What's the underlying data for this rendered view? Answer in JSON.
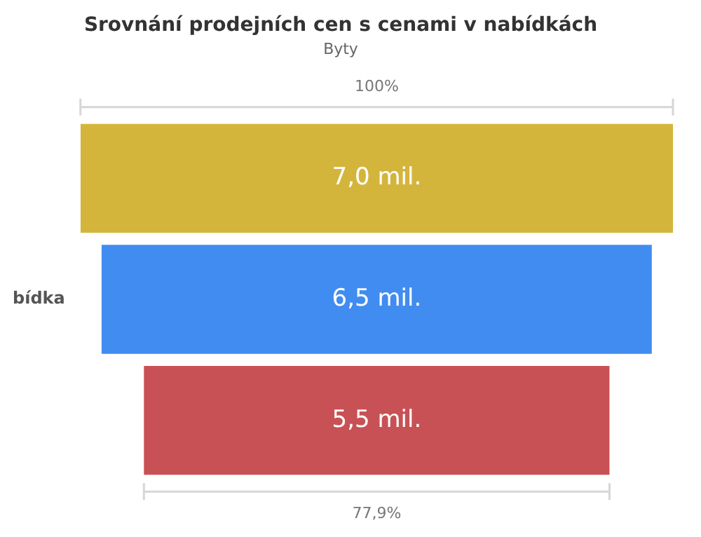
{
  "chart_data": {
    "type": "other",
    "title": "Srovnání prodejních cen s cenami v nabídkách",
    "subtitle": "Byty",
    "categories": [
      null,
      "bídka",
      null
    ],
    "values": [
      7.0,
      6.5,
      5.5
    ],
    "value_labels": [
      "7,0 mil.",
      "6,5 mil.",
      "5,5 mil."
    ],
    "colors": [
      "#d4b53c",
      "#418cf0",
      "#c85155"
    ],
    "annotations": [
      "100%",
      "77,9%"
    ]
  }
}
